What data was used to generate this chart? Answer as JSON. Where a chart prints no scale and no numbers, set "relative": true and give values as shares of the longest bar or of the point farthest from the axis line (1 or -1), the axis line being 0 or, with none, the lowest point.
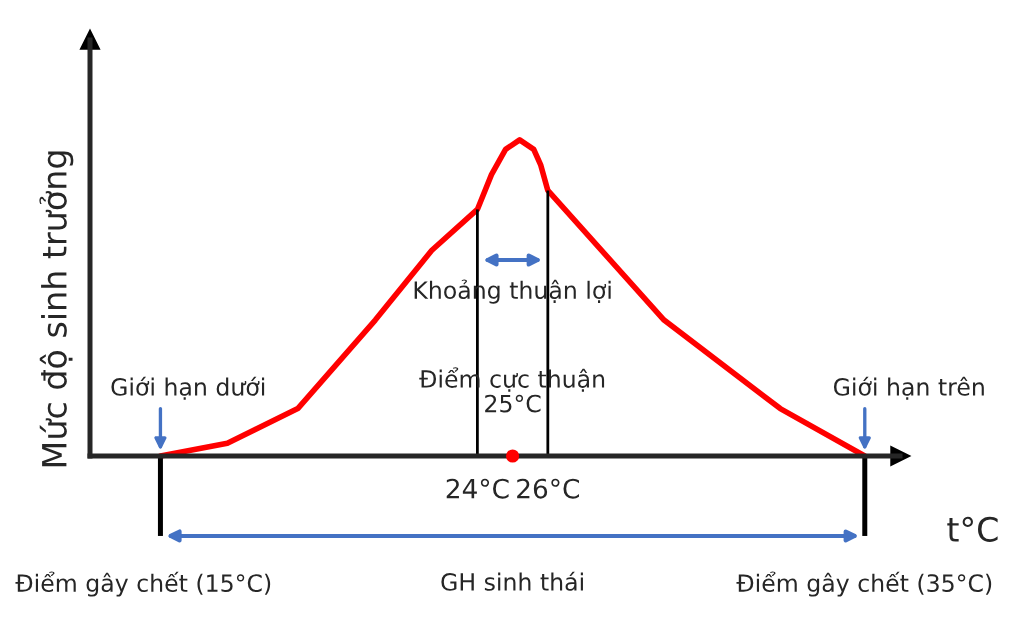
{
  "chart_data": {
    "type": "line",
    "relative": true,
    "ylabel": "Mức độ sinh trưởng",
    "xlabel": "t°C",
    "xlim": [
      13,
      36
    ],
    "xticks": [
      {
        "value": 24,
        "label": "24°C"
      },
      {
        "value": 26,
        "label": "26°C"
      }
    ],
    "series": [
      {
        "type": "line",
        "color": "#ff0000",
        "x": [
          15,
          16.9,
          18.9,
          21.1,
          22.7,
          24,
          24.4,
          24.8,
          25.2,
          25.6,
          25.8,
          26,
          29.3,
          32.6,
          35
        ],
        "values": [
          0,
          0.04,
          0.15,
          0.43,
          0.65,
          0.78,
          0.89,
          0.97,
          1.0,
          0.97,
          0.92,
          0.84,
          0.43,
          0.15,
          0
        ]
      },
      {
        "type": "scatter",
        "color": "#ff0000",
        "x": [
          25
        ],
        "values": [
          0
        ]
      }
    ],
    "ref_lines": [
      {
        "axis": "x",
        "value": 24,
        "color": "#000000"
      },
      {
        "axis": "x",
        "value": 26,
        "color": "#000000"
      }
    ],
    "annotations": [
      {
        "text": "Giới hạn dưới",
        "x": 15,
        "y": 0
      },
      {
        "text": "Giới hạn trên",
        "x": 35,
        "y": 0
      },
      {
        "text": "Điểm cực thuận\n25°C",
        "x": 25,
        "y": 0
      },
      "Khoảng thuận lợi",
      "GH sinh thái",
      "Điểm gây chết (15°C)",
      "Điểm gây chết (35°C)"
    ],
    "grid": false,
    "legend": false
  }
}
